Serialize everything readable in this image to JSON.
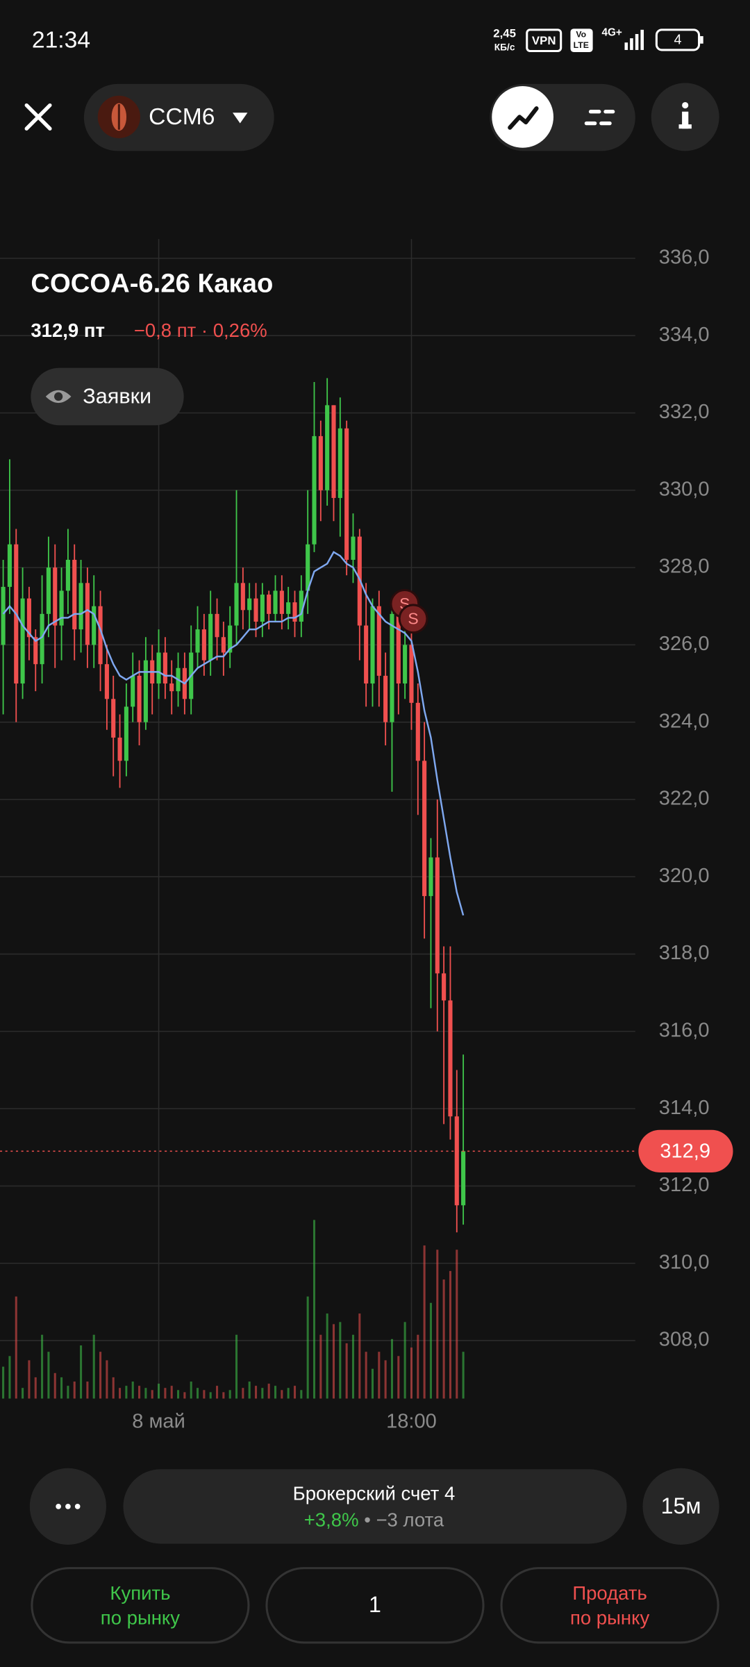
{
  "status_bar": {
    "time": "21:34",
    "speed": "2,45",
    "speed_unit": "КБ/с",
    "vpn": "VPN",
    "volte": [
      "Vo",
      "LTE"
    ],
    "network": "4G+",
    "battery": "4"
  },
  "header": {
    "ticker": "CCM6"
  },
  "instrument": {
    "title": "COCOA-6.26 Какао",
    "price": "312,9 пт",
    "change": "−0,8 пт · 0,26%",
    "orders_button": "Заявки"
  },
  "chart_data": {
    "type": "candlestick",
    "categories": [
      null,
      null,
      null,
      null,
      null,
      null,
      null,
      null,
      null,
      null,
      null,
      null,
      null,
      null,
      null,
      null,
      null,
      null,
      null,
      null,
      null,
      null,
      null,
      null,
      "8 май",
      null,
      null,
      null,
      null,
      null,
      null,
      null,
      null,
      null,
      null,
      null,
      null,
      null,
      null,
      null,
      null,
      null,
      null,
      null,
      null,
      null,
      null,
      null,
      null,
      null,
      null,
      null,
      null,
      null,
      null,
      null,
      null,
      null,
      null,
      null,
      null,
      null,
      null,
      "18:00",
      null,
      null,
      null,
      null,
      null,
      null,
      null,
      null
    ],
    "open": [
      326.0,
      327.5,
      328.6,
      325.0,
      327.2,
      326.2,
      325.5,
      326.8,
      328.0,
      326.5,
      327.4,
      328.2,
      326.4,
      327.6,
      326.0,
      327.0,
      325.5,
      324.6,
      323.6,
      323.0,
      324.4,
      325.2,
      324.0,
      325.6,
      325.0,
      325.8,
      325.0,
      324.8,
      325.4,
      324.6,
      325.8,
      326.4,
      325.6,
      326.8,
      326.2,
      325.8,
      326.5,
      327.6,
      326.9,
      327.2,
      326.6,
      327.3,
      326.8,
      327.4,
      326.8,
      327.1,
      326.6,
      327.4,
      328.6,
      331.4,
      330.0,
      332.2,
      329.8,
      331.6,
      328.2,
      328.8,
      326.5,
      325.0,
      327.0,
      325.2,
      324.0,
      326.8,
      325.0,
      326.0,
      324.5,
      323.0,
      319.5,
      320.5,
      317.5,
      316.8,
      313.8,
      311.5
    ],
    "high": [
      328.2,
      330.8,
      329.0,
      328.0,
      327.5,
      326.4,
      327.8,
      328.8,
      328.6,
      328.0,
      329.0,
      328.6,
      328.2,
      328.0,
      327.8,
      327.4,
      326.0,
      325.2,
      324.2,
      325.0,
      325.8,
      325.6,
      326.2,
      326.0,
      326.4,
      326.2,
      325.6,
      325.8,
      325.8,
      326.5,
      327.0,
      326.8,
      327.4,
      327.2,
      326.6,
      327.0,
      330.0,
      328.0,
      327.6,
      327.6,
      327.6,
      327.4,
      327.8,
      327.8,
      327.5,
      327.4,
      327.8,
      330.0,
      332.8,
      331.8,
      332.9,
      332.2,
      332.4,
      331.8,
      329.4,
      329.0,
      327.6,
      327.2,
      327.4,
      325.8,
      327.2,
      327.0,
      326.6,
      326.4,
      325.0,
      324.0,
      321.0,
      322.0,
      318.2,
      318.2,
      315.0,
      315.4
    ],
    "low": [
      324.2,
      326.8,
      324.0,
      324.6,
      325.6,
      324.8,
      325.0,
      326.2,
      325.4,
      325.6,
      326.8,
      325.6,
      325.8,
      325.4,
      325.4,
      324.8,
      323.8,
      322.6,
      322.3,
      322.6,
      324.0,
      323.4,
      323.8,
      324.2,
      324.6,
      324.6,
      324.2,
      324.4,
      324.2,
      324.2,
      325.4,
      325.2,
      325.2,
      325.6,
      325.2,
      325.4,
      326.0,
      326.4,
      326.4,
      326.2,
      326.2,
      326.4,
      326.6,
      326.4,
      326.4,
      326.2,
      326.2,
      326.8,
      328.4,
      329.2,
      329.6,
      329.2,
      328.8,
      327.8,
      327.6,
      325.6,
      324.4,
      324.4,
      324.4,
      323.4,
      322.2,
      324.2,
      324.6,
      323.8,
      321.6,
      318.4,
      316.6,
      316.0,
      313.6,
      313.2,
      310.8,
      311.0
    ],
    "close": [
      327.5,
      328.6,
      325.0,
      327.2,
      326.2,
      325.5,
      326.8,
      328.0,
      326.5,
      327.4,
      328.2,
      326.4,
      327.6,
      326.0,
      327.0,
      325.5,
      324.6,
      323.6,
      323.0,
      324.4,
      325.2,
      324.0,
      325.6,
      325.0,
      325.8,
      325.0,
      324.8,
      325.4,
      324.6,
      325.8,
      326.4,
      325.6,
      326.8,
      326.2,
      325.8,
      326.5,
      327.6,
      326.9,
      327.2,
      326.6,
      327.3,
      326.8,
      327.4,
      326.8,
      327.1,
      326.6,
      327.4,
      328.6,
      331.4,
      330.0,
      332.2,
      329.8,
      331.6,
      328.2,
      328.8,
      326.5,
      325.0,
      327.0,
      325.2,
      324.0,
      326.8,
      325.0,
      326.0,
      324.5,
      323.0,
      319.5,
      320.5,
      317.5,
      316.8,
      313.8,
      311.5,
      312.9
    ],
    "volume": [
      15,
      20,
      48,
      5,
      18,
      10,
      30,
      22,
      12,
      10,
      6,
      8,
      25,
      8,
      30,
      22,
      18,
      10,
      5,
      6,
      8,
      6,
      5,
      4,
      7,
      5,
      6,
      4,
      3,
      8,
      5,
      4,
      3,
      6,
      3,
      4,
      30,
      5,
      8,
      6,
      5,
      7,
      6,
      4,
      5,
      6,
      4,
      48,
      84,
      30,
      40,
      35,
      36,
      26,
      30,
      40,
      22,
      14,
      22,
      18,
      28,
      20,
      36,
      24,
      30,
      72,
      45,
      70,
      56,
      60,
      70,
      22
    ],
    "vlim": [
      0,
      100
    ],
    "ma": {
      "color": "#7fa8f0",
      "values": [
        326.8,
        327.0,
        326.8,
        326.5,
        326.3,
        326.1,
        326.2,
        326.5,
        326.6,
        326.7,
        326.7,
        326.8,
        326.8,
        326.9,
        326.8,
        326.4,
        325.9,
        325.5,
        325.2,
        325.1,
        325.2,
        325.3,
        325.3,
        325.3,
        325.3,
        325.2,
        325.2,
        325.1,
        325.0,
        325.2,
        325.4,
        325.5,
        325.6,
        325.7,
        325.7,
        325.9,
        326.0,
        326.2,
        326.4,
        326.4,
        326.5,
        326.6,
        326.6,
        326.6,
        326.7,
        326.7,
        326.8,
        327.4,
        327.9,
        328.0,
        328.1,
        328.4,
        328.3,
        328.1,
        328.0,
        327.7,
        327.3,
        327.0,
        326.8,
        326.6,
        326.5,
        326.4,
        326.3,
        326.1,
        325.3,
        324.3,
        323.6,
        322.5,
        321.5,
        320.5,
        319.6,
        319.0
      ]
    },
    "up_color": "#3fc64a",
    "down_color": "#f0504f",
    "ylim": [
      306.5,
      336.5
    ],
    "yticks": [
      {
        "value": 308,
        "label": "308,0"
      },
      {
        "value": 310,
        "label": "310,0"
      },
      {
        "value": 312,
        "label": "312,0"
      },
      {
        "value": 314,
        "label": "314,0"
      },
      {
        "value": 316,
        "label": "316,0"
      },
      {
        "value": 318,
        "label": "318,0"
      },
      {
        "value": 320,
        "label": "320,0"
      },
      {
        "value": 322,
        "label": "322,0"
      },
      {
        "value": 324,
        "label": "324,0"
      },
      {
        "value": 326,
        "label": "326,0"
      },
      {
        "value": 328,
        "label": "328,0"
      },
      {
        "value": 330,
        "label": "330,0"
      },
      {
        "value": 332,
        "label": "332,0"
      },
      {
        "value": 334,
        "label": "334,0"
      },
      {
        "value": 336,
        "label": "336,0"
      }
    ],
    "grid": true,
    "price_line": {
      "value": 312.9,
      "label": "312,9"
    },
    "trade_markers": [
      {
        "label": "S"
      },
      {
        "label": "S"
      }
    ]
  },
  "footer": {
    "account": "Брокерский счет 4",
    "account_return": "+3,8%",
    "account_position": "• −3 лота",
    "interval": "15м",
    "buy": [
      "Купить",
      "по рынку"
    ],
    "quantity": "1",
    "sell": [
      "Продать",
      "по рынку"
    ]
  }
}
